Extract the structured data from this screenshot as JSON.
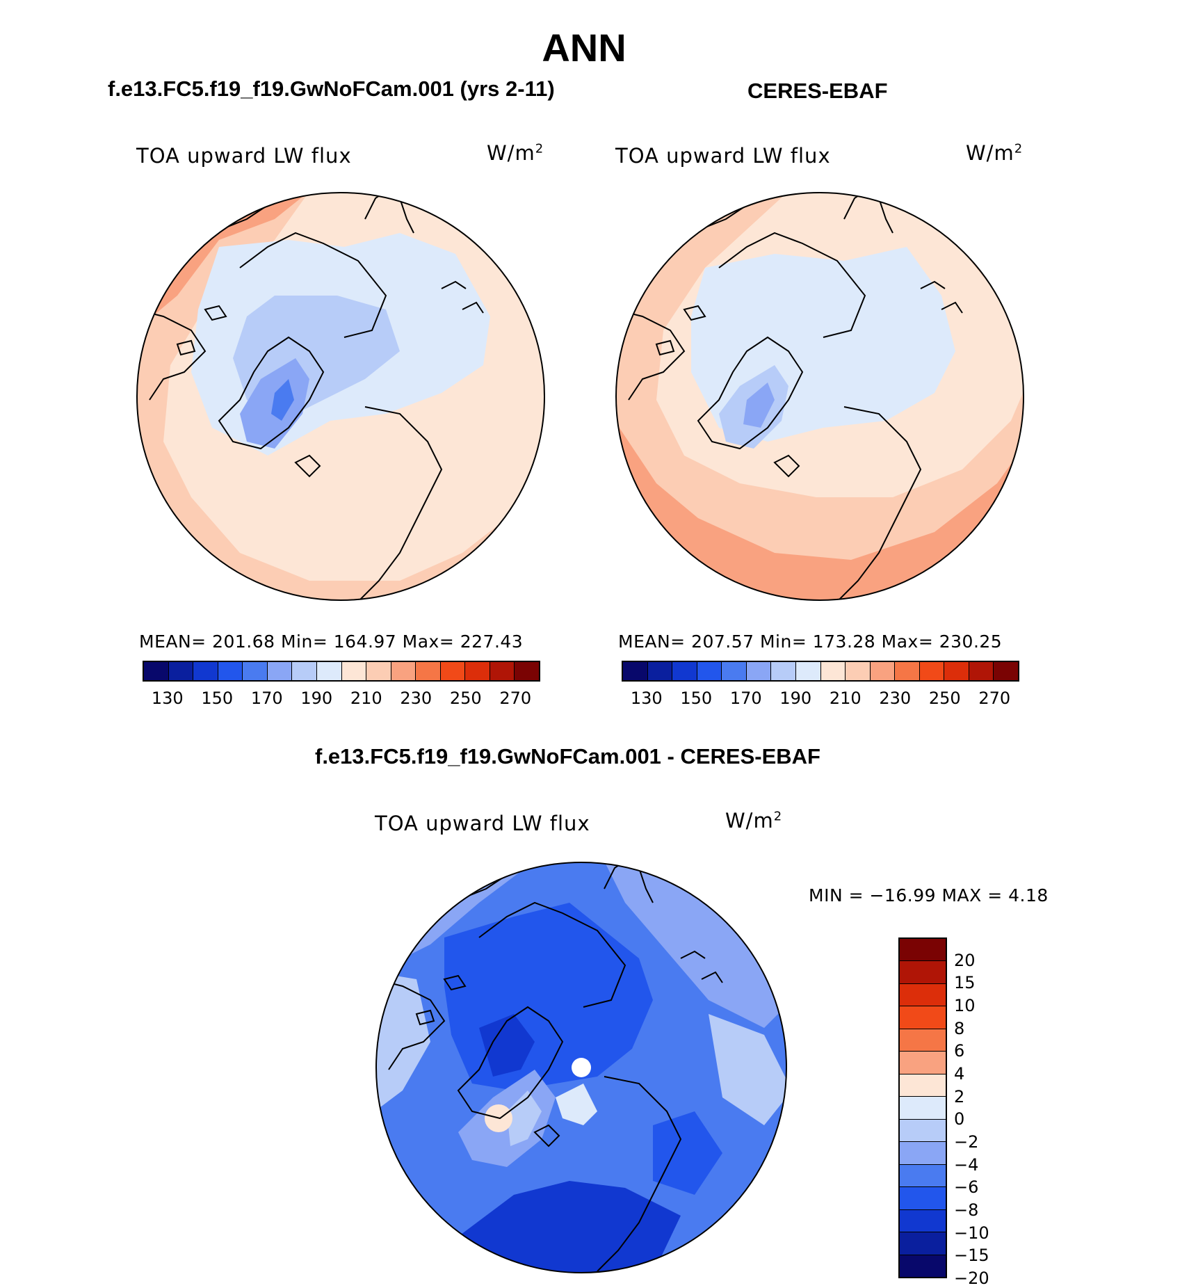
{
  "season": "ANN",
  "panels": [
    {
      "header": "f.e13.FC5.f19_f19.GwNoFCam.001 (yrs 2-11)",
      "variable": "TOA upward LW flux",
      "unit_base": "W/m",
      "unit_exp": "2",
      "stats_text": "MEAN= 201.68   Min= 164.97   Max= 227.43",
      "colorbar_ticks": [
        "130",
        "150",
        "170",
        "190",
        "210",
        "230",
        "250",
        "270"
      ]
    },
    {
      "header": "CERES-EBAF",
      "variable": "TOA upward LW flux",
      "unit_base": "W/m",
      "unit_exp": "2",
      "stats_text": "MEAN= 207.57   Min= 173.28   Max= 230.25",
      "colorbar_ticks": [
        "130",
        "150",
        "170",
        "190",
        "210",
        "230",
        "250",
        "270"
      ]
    }
  ],
  "diff": {
    "header": "f.e13.FC5.f19_f19.GwNoFCam.001 - CERES-EBAF",
    "variable": "TOA upward LW flux",
    "unit_base": "W/m",
    "unit_exp": "2",
    "stats_text": "MIN = −16.99 MAX =    4.18",
    "colorbar_ticks": [
      "20",
      "15",
      "10",
      "8",
      "6",
      "4",
      "2",
      "0",
      "−2",
      "−4",
      "−6",
      "−8",
      "−10",
      "−15",
      "−20"
    ]
  },
  "colors": {
    "abs_scale": [
      "#08086b",
      "#0a1f9e",
      "#1138d0",
      "#2256ec",
      "#4a7bf0",
      "#8aa6f5",
      "#b7ccf8",
      "#ddeafb",
      "#fde6d6",
      "#fccdb4",
      "#f9a280",
      "#f57646",
      "#f14a18",
      "#dc2e0a",
      "#b01506",
      "#7a0303"
    ],
    "diff_scale_top_to_bottom": [
      "#7a0303",
      "#b01506",
      "#dc2e0a",
      "#f14a18",
      "#f57646",
      "#f9a280",
      "#fde6d6",
      "#ddeafb",
      "#b7ccf8",
      "#8aa6f5",
      "#4a7bf0",
      "#2256ec",
      "#1138d0",
      "#0a1f9e",
      "#08086b"
    ]
  }
}
